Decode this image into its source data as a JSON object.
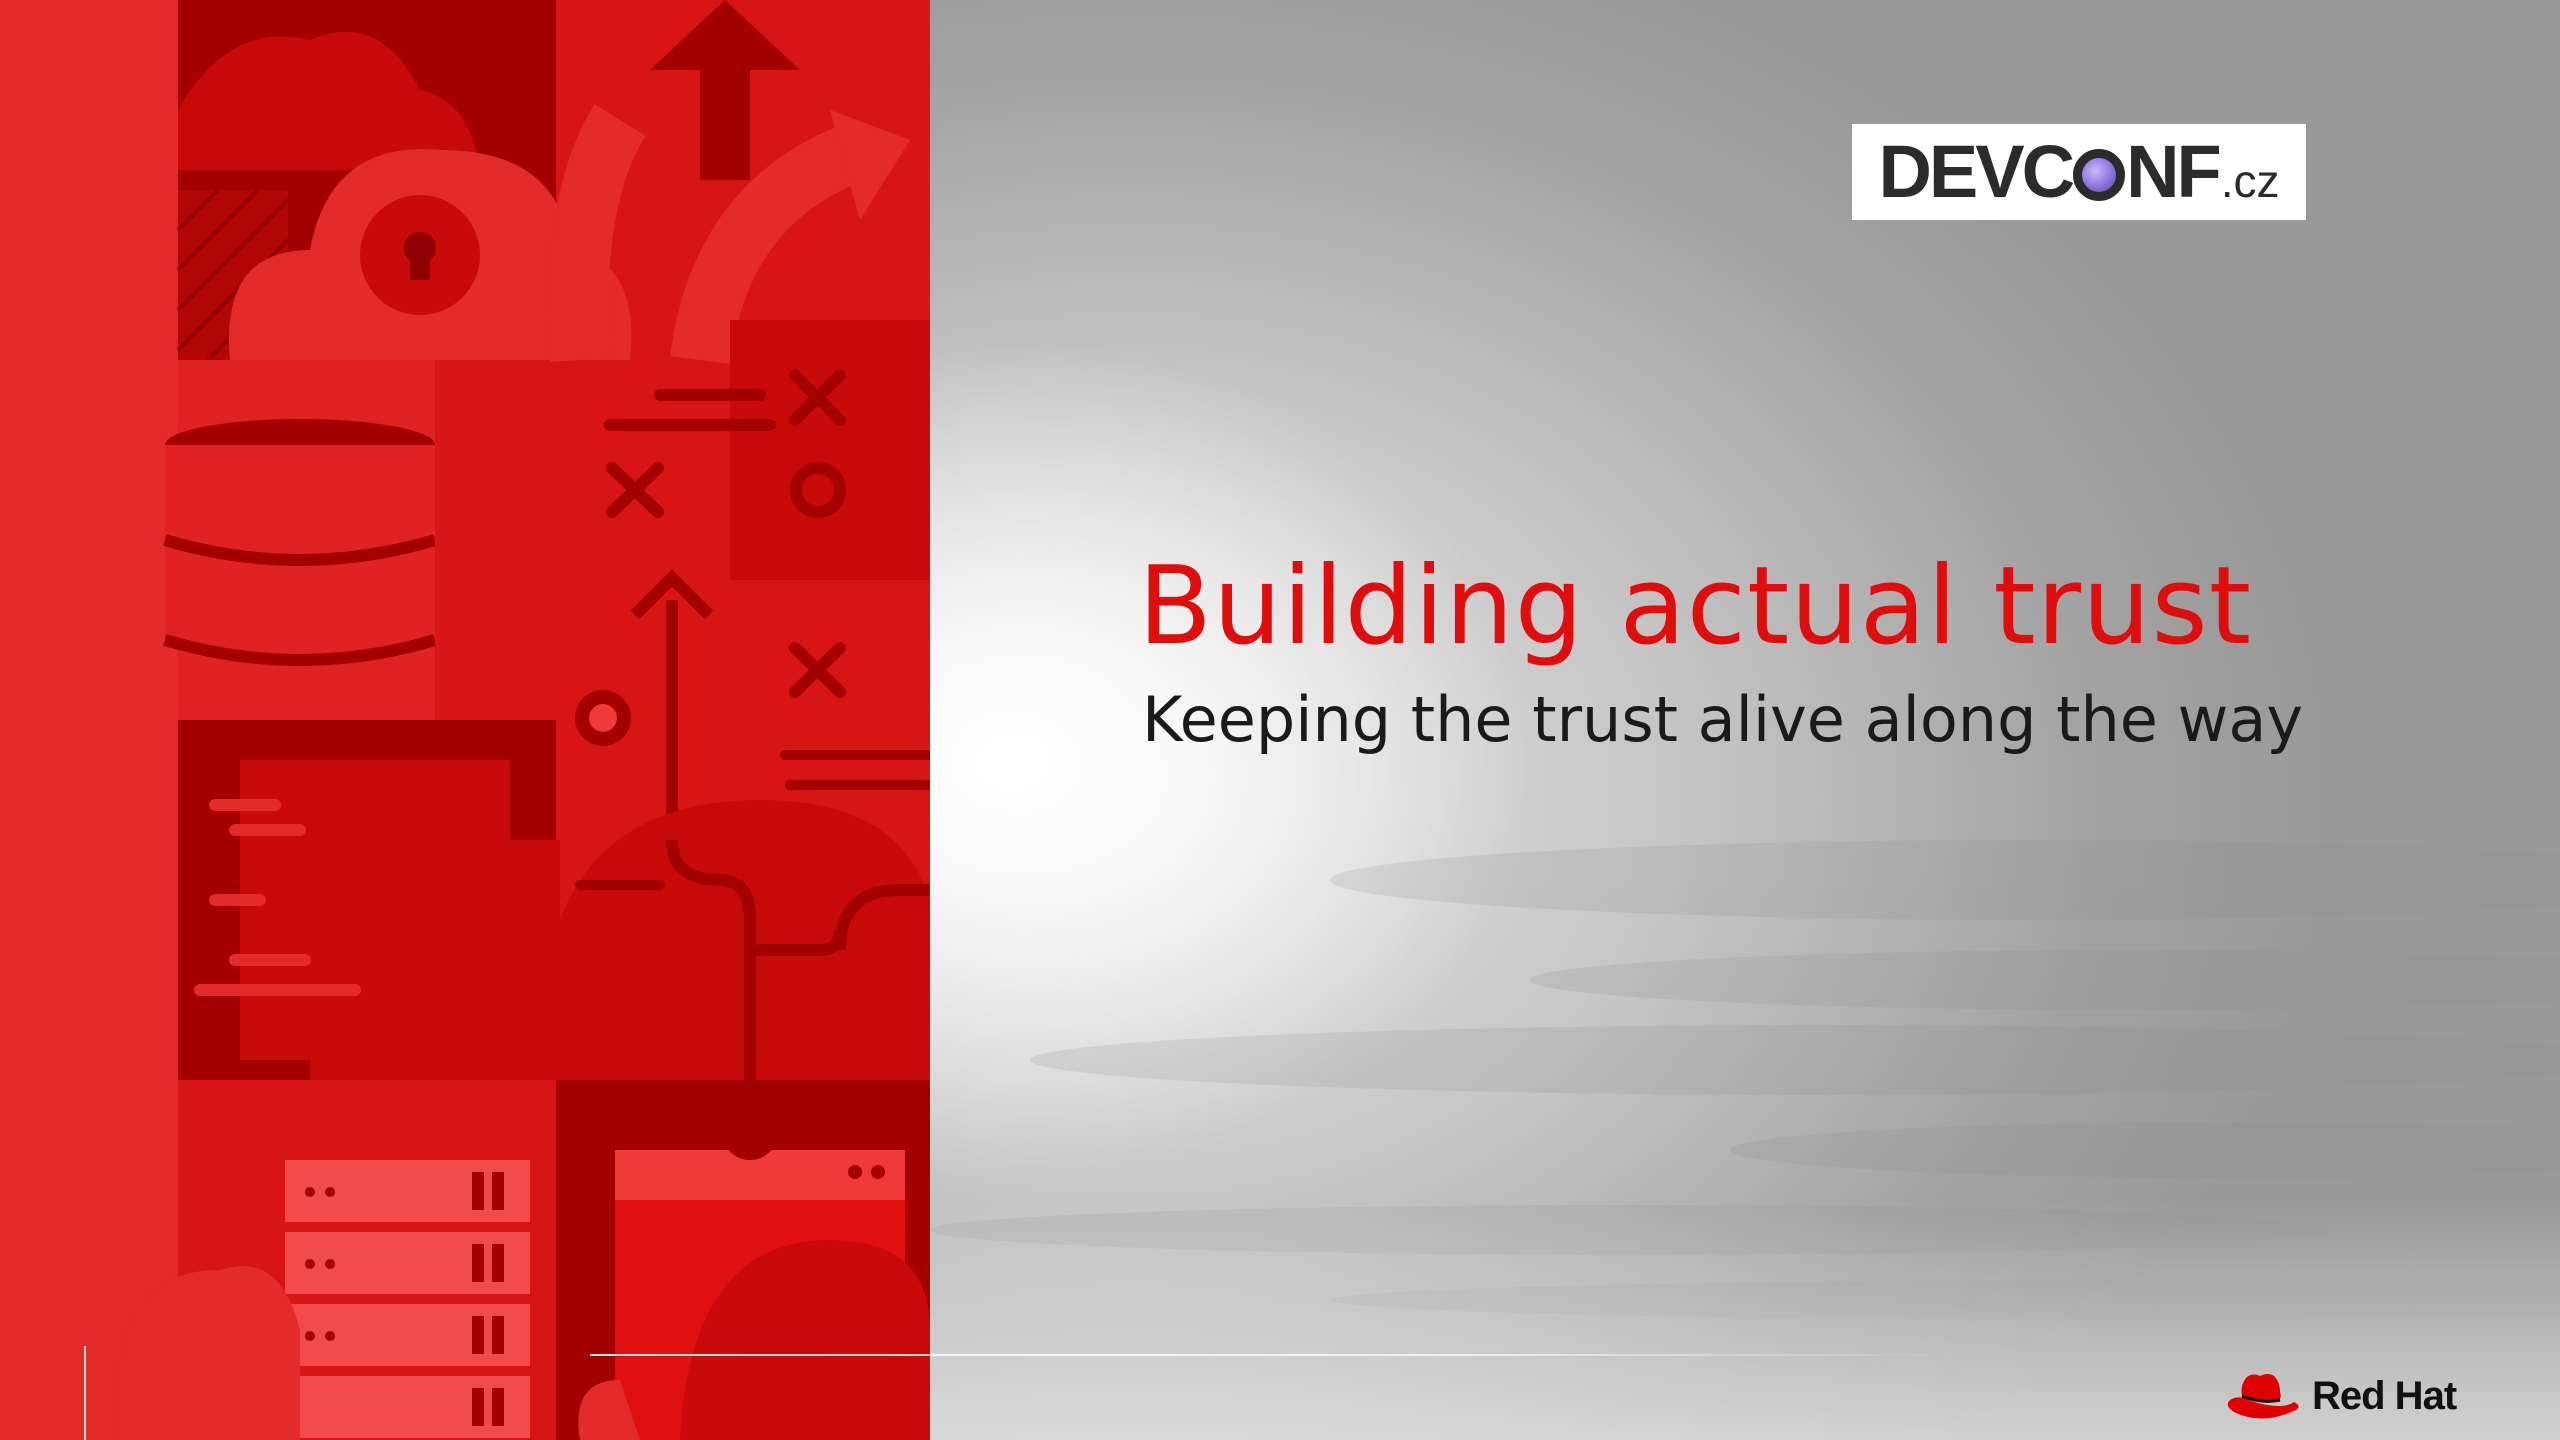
{
  "slide": {
    "title": "Building actual trust",
    "subtitle": "Keeping the trust alive along the way"
  },
  "devconf_logo": {
    "text_before_lens": "DEVC",
    "text_after_lens": "NF",
    "suffix": ".cz"
  },
  "redhat_logo": {
    "text": "Red Hat",
    "icon": "red-hat-icon"
  },
  "colors": {
    "accent_red": "#e00d0d",
    "panel_red": "#e32b2b",
    "dark_red": "#a30000",
    "text_dark": "#1a1a1a"
  }
}
